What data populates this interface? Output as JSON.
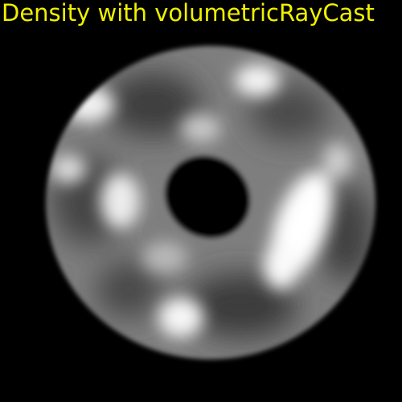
{
  "window": {
    "title": "Density with volumetricRayCast",
    "title_color": "#f0f000",
    "background": "#000000"
  },
  "volume": {
    "shape": "torus",
    "description_colors": {
      "base": "#8a8a8a",
      "highlight": "#ffffff",
      "shadow": "#3a3a3a"
    }
  }
}
